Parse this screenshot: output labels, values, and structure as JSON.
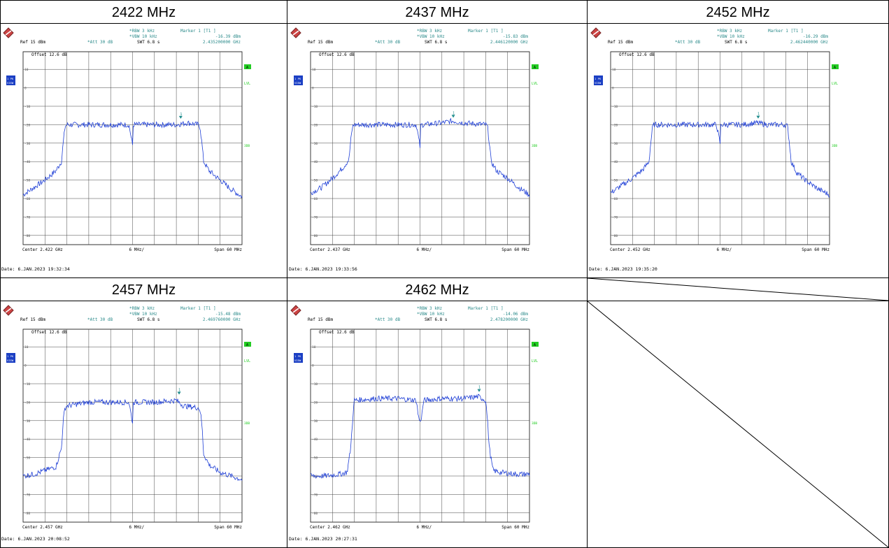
{
  "headers": [
    "2422 MHz",
    "2437 MHz",
    "2452 MHz",
    "2457 MHz",
    "2462 MHz"
  ],
  "plots": [
    {
      "rbw": "*RBW 3 kHz",
      "vbw": "*VBW 10 kHz",
      "att": "*Att  30 dB",
      "swt": "SWT 6.8 s",
      "ref": "Ref  15 dBm",
      "offset": "Offset  12.6 dB",
      "marker_title": "Marker 1 [T1 ]",
      "marker_level": "-16.39 dBm",
      "marker_freq": "2.435200000 GHz",
      "center": "Center 2.422 GHz",
      "div": "6 MHz/",
      "span": "Span 60 MHz",
      "date": "Date: 6.JAN.2023  19:32:34",
      "badge_a": "A",
      "badge_lvl": "LVL",
      "badge_3db": "3DB",
      "side_badge": "1 PK\nVIEW",
      "y_ticks": [
        "10",
        "0",
        "-10",
        "-20",
        "-30",
        "-40",
        "-50",
        "-60",
        "-70",
        "-80"
      ],
      "chart_data": {
        "type": "line",
        "xlabel": "",
        "ylabel": "",
        "ylim": [
          -85,
          15
        ],
        "x_unit": "MHz",
        "x": [
          -30,
          -27,
          -24,
          -21,
          -19.5,
          -19,
          -18.5,
          -18,
          -12,
          -6,
          -1,
          0,
          0.2,
          1,
          6,
          12,
          15,
          18,
          18.5,
          19,
          19.5,
          21,
          24,
          27,
          30
        ],
        "y": [
          -58,
          -54,
          -50,
          -45,
          -40,
          -30,
          -21,
          -20,
          -20,
          -20,
          -20,
          -31,
          -20,
          -20,
          -20,
          -20,
          -19,
          -20,
          -21,
          -30,
          -40,
          -45,
          -50,
          -55,
          -59
        ],
        "marker": {
          "x": 13.2,
          "y": -16.39,
          "label": "1"
        }
      }
    },
    {
      "rbw": "*RBW 3 kHz",
      "vbw": "*VBW 10 kHz",
      "att": "*Att  30 dB",
      "swt": "SWT 6.8 s",
      "ref": "Ref  15 dBm",
      "offset": "Offset  12.6 dB",
      "marker_title": "Marker 1 [T1 ]",
      "marker_level": "-15.83 dBm",
      "marker_freq": "2.446120000 GHz",
      "center": "Center 2.437 GHz",
      "div": "6 MHz/",
      "span": "Span 60 MHz",
      "date": "Date: 6.JAN.2023  19:33:56",
      "badge_a": "A",
      "badge_lvl": "LVL",
      "badge_3db": "3DB",
      "side_badge": "1 PK\nVIEW",
      "y_ticks": [
        "10",
        "0",
        "-10",
        "-20",
        "-30",
        "-40",
        "-50",
        "-60",
        "-70",
        "-80"
      ],
      "chart_data": {
        "type": "line",
        "xlabel": "",
        "ylabel": "",
        "ylim": [
          -85,
          15
        ],
        "x_unit": "MHz",
        "x": [
          -30,
          -27,
          -24,
          -21,
          -19.5,
          -19,
          -18.5,
          -18,
          -12,
          -6,
          -1,
          0,
          0.2,
          1,
          6,
          9,
          12,
          18,
          18.5,
          19,
          19.5,
          21,
          24,
          27,
          30
        ],
        "y": [
          -57,
          -54,
          -49,
          -43,
          -39,
          -29,
          -21,
          -20,
          -20,
          -20,
          -20,
          -32,
          -20,
          -20,
          -19,
          -18,
          -19,
          -20,
          -21,
          -30,
          -40,
          -45,
          -49,
          -54,
          -58
        ],
        "marker": {
          "x": 9.12,
          "y": -15.83,
          "label": "1"
        }
      }
    },
    {
      "rbw": "*RBW 3 kHz",
      "vbw": "*VBW 10 kHz",
      "att": "*Att  30 dB",
      "swt": "SWT 6.8 s",
      "ref": "Ref  15 dBm",
      "offset": "Offset  12.6 dB",
      "marker_title": "Marker 1 [T1 ]",
      "marker_level": "-16.29 dBm",
      "marker_freq": "2.462440000 GHz",
      "center": "Center 2.452 GHz",
      "div": "6 MHz/",
      "span": "Span 60 MHz",
      "date": "Date: 6.JAN.2023  19:35:20",
      "badge_a": "A",
      "badge_lvl": "LVL",
      "badge_3db": "3DB",
      "side_badge": "1 PK\nVIEW",
      "y_ticks": [
        "10",
        "0",
        "-10",
        "-20",
        "-30",
        "-40",
        "-50",
        "-60",
        "-70",
        "-80"
      ],
      "chart_data": {
        "type": "line",
        "xlabel": "",
        "ylabel": "",
        "ylim": [
          -85,
          15
        ],
        "x_unit": "MHz",
        "x": [
          -30,
          -27,
          -24,
          -21,
          -19.5,
          -19,
          -18.5,
          -18,
          -12,
          -6,
          -1,
          0,
          0.2,
          1,
          6,
          10,
          13,
          18,
          18.5,
          19,
          19.5,
          21,
          24,
          27,
          30
        ],
        "y": [
          -57,
          -53,
          -49,
          -44,
          -40,
          -30,
          -21,
          -20,
          -20,
          -20,
          -20,
          -30,
          -20,
          -20,
          -20,
          -19,
          -20,
          -20,
          -21,
          -30,
          -40,
          -46,
          -51,
          -55,
          -58
        ],
        "marker": {
          "x": 10.44,
          "y": -16.29,
          "label": "1"
        }
      }
    },
    {
      "rbw": "*RBW 3 kHz",
      "vbw": "*VBW 10 kHz",
      "att": "*Att  30 dB",
      "swt": "SWT 6.8 s",
      "ref": "Ref  15 dBm",
      "offset": "Offset  12.6 dB",
      "marker_title": "Marker 1 [T1 ]",
      "marker_level": "-15.48 dBm",
      "marker_freq": "2.469760000 GHz",
      "center": "Center 2.457 GHz",
      "div": "6 MHz/",
      "span": "Span 60 MHz",
      "date": "Date: 6.JAN.2023  20:08:52",
      "badge_a": "A",
      "badge_lvl": "LVL",
      "badge_3db": "3DB",
      "side_badge": "1 PK\nVIEW",
      "y_ticks": [
        "10",
        "0",
        "-10",
        "-20",
        "-30",
        "-40",
        "-50",
        "-60",
        "-70",
        "-80"
      ],
      "chart_data": {
        "type": "line",
        "xlabel": "",
        "ylabel": "",
        "ylim": [
          -85,
          15
        ],
        "x_unit": "MHz",
        "x": [
          -30,
          -27,
          -24,
          -21,
          -19.5,
          -19,
          -18.5,
          -18,
          -12,
          -6,
          -1,
          0,
          0.2,
          1,
          6,
          12,
          14,
          18,
          18.5,
          19,
          19.5,
          21,
          24,
          27,
          30
        ],
        "y": [
          -60,
          -59,
          -57,
          -55,
          -45,
          -30,
          -23,
          -22,
          -20,
          -20,
          -20,
          -31,
          -20,
          -20,
          -20,
          -19,
          -22,
          -23,
          -24,
          -32,
          -48,
          -54,
          -58,
          -60,
          -62
        ],
        "marker": {
          "x": 12.76,
          "y": -15.48,
          "label": "1"
        }
      }
    },
    {
      "rbw": "*RBW 3 kHz",
      "vbw": "*VBW 10 kHz",
      "att": "*Att  30 dB",
      "swt": "SWT 6.8 s",
      "ref": "Ref  15 dBm",
      "offset": "Offset  12.6 dB",
      "marker_title": "Marker 1 [T1 ]",
      "marker_level": "-14.06 dBm",
      "marker_freq": "2.478200000 GHz",
      "center": "Center 2.462 GHz",
      "div": "6 MHz/",
      "span": "Span 60 MHz",
      "date": "Date: 6.JAN.2023  20:27:31",
      "badge_a": "A",
      "badge_lvl": "LVL",
      "badge_3db": "3DB",
      "side_badge": "1 PK\nVIEW",
      "y_ticks": [
        "10",
        "0",
        "-10",
        "-20",
        "-30",
        "-40",
        "-50",
        "-60",
        "-70",
        "-80"
      ],
      "chart_data": {
        "type": "line",
        "xlabel": "",
        "ylabel": "",
        "ylim": [
          -85,
          15
        ],
        "x_unit": "MHz",
        "x": [
          -30,
          -26,
          -22,
          -20,
          -19,
          -18.5,
          -18,
          -12,
          -6,
          -1,
          -0.5,
          0,
          0.5,
          1,
          6,
          12,
          16,
          18,
          18.5,
          19,
          20,
          22,
          26,
          30
        ],
        "y": [
          -60,
          -60,
          -59,
          -58,
          -45,
          -30,
          -19,
          -18,
          -18,
          -19,
          -27,
          -31,
          -27,
          -19,
          -18,
          -18,
          -17,
          -19,
          -30,
          -45,
          -57,
          -58,
          -59,
          -59
        ],
        "marker": {
          "x": 16.2,
          "y": -14.06,
          "label": "1"
        }
      }
    }
  ]
}
